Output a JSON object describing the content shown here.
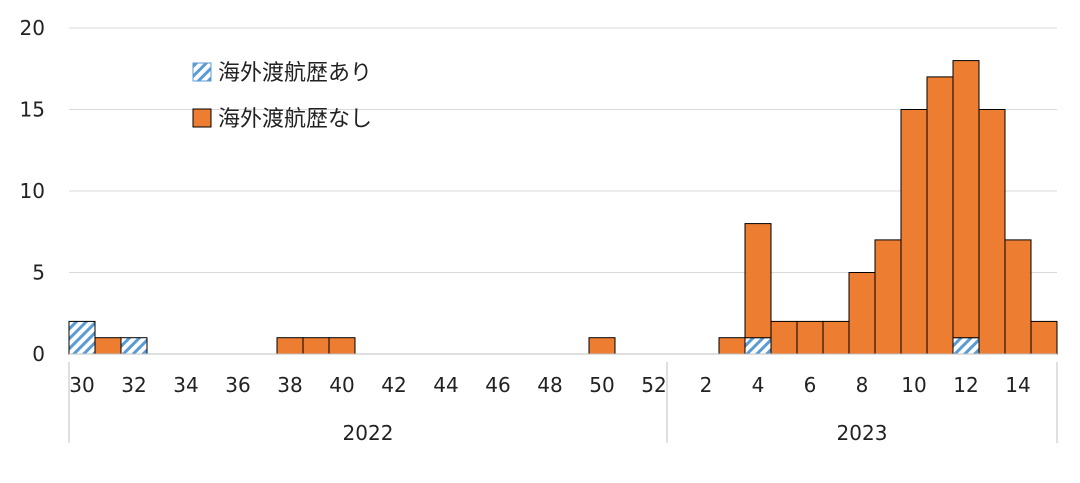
{
  "chart_data": {
    "type": "bar",
    "stacked": true,
    "grid": true,
    "legend_position": "top-left",
    "ylim": [
      0,
      20
    ],
    "y_ticks": [
      "0",
      "5",
      "10",
      "15",
      "20"
    ],
    "x_tick_labels": [
      "30",
      "32",
      "34",
      "36",
      "38",
      "40",
      "42",
      "44",
      "46",
      "48",
      "50",
      "52",
      "2",
      "4",
      "6",
      "8",
      "10",
      "12",
      "14"
    ],
    "year_groups": [
      {
        "label": "2022",
        "weeks": [
          30,
          31,
          32,
          33,
          34,
          35,
          36,
          37,
          38,
          39,
          40,
          41,
          42,
          43,
          44,
          45,
          46,
          47,
          48,
          49,
          50,
          51,
          52
        ]
      },
      {
        "label": "2023",
        "weeks": [
          1,
          2,
          3,
          4,
          5,
          6,
          7,
          8,
          9,
          10,
          11,
          12,
          13,
          14,
          15
        ]
      }
    ],
    "categories": [
      "2022-30",
      "2022-31",
      "2022-32",
      "2022-33",
      "2022-34",
      "2022-35",
      "2022-36",
      "2022-37",
      "2022-38",
      "2022-39",
      "2022-40",
      "2022-41",
      "2022-42",
      "2022-43",
      "2022-44",
      "2022-45",
      "2022-46",
      "2022-47",
      "2022-48",
      "2022-49",
      "2022-50",
      "2022-51",
      "2022-52",
      "2023-1",
      "2023-2",
      "2023-3",
      "2023-4",
      "2023-5",
      "2023-6",
      "2023-7",
      "2023-8",
      "2023-9",
      "2023-10",
      "2023-11",
      "2023-12",
      "2023-13",
      "2023-14",
      "2023-15"
    ],
    "series": [
      {
        "name": "海外渡航歴あり",
        "color": "#5b9bd5",
        "pattern": "diagonal-hatch",
        "values": [
          2,
          0,
          1,
          0,
          0,
          0,
          0,
          0,
          0,
          0,
          0,
          0,
          0,
          0,
          0,
          0,
          0,
          0,
          0,
          0,
          0,
          0,
          0,
          0,
          0,
          0,
          1,
          0,
          0,
          0,
          0,
          0,
          0,
          0,
          1,
          0,
          0,
          0
        ]
      },
      {
        "name": "海外渡航歴なし",
        "color": "#ed7d31",
        "values": [
          0,
          1,
          0,
          0,
          0,
          0,
          0,
          0,
          1,
          1,
          1,
          0,
          0,
          0,
          0,
          0,
          0,
          0,
          0,
          0,
          1,
          0,
          0,
          0,
          0,
          1,
          7,
          2,
          2,
          2,
          5,
          7,
          15,
          17,
          17,
          15,
          7,
          2
        ]
      }
    ]
  }
}
